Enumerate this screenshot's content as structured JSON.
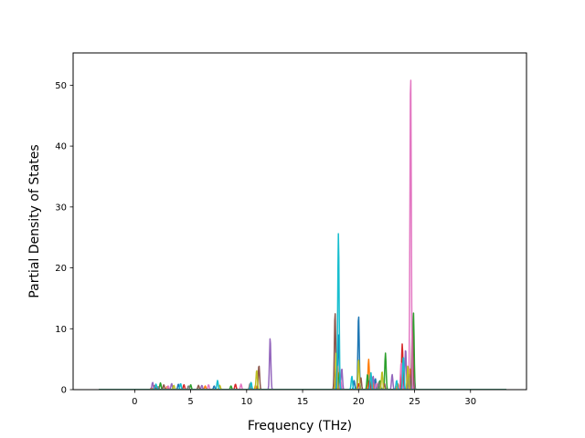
{
  "chart_data": {
    "type": "line",
    "title": "",
    "xlabel": "Frequency (THz)",
    "ylabel": "Partial Density of States",
    "xlim": [
      -5.5,
      35.0
    ],
    "ylim": [
      0,
      55.3
    ],
    "xticks": [
      0,
      5,
      10,
      15,
      20,
      25,
      30
    ],
    "yticks": [
      0,
      10,
      20,
      30,
      40,
      50
    ],
    "grid": false,
    "legend": "none",
    "x_range_plotted": [
      -3.2,
      33.2
    ],
    "series": [
      {
        "color": "#1f77b4",
        "peaks": [
          [
            2.0,
            0.4
          ],
          [
            3.9,
            0.9
          ],
          [
            7.1,
            0.6
          ],
          [
            18.2,
            9.0
          ],
          [
            19.6,
            1.5
          ],
          [
            20.0,
            12.3
          ],
          [
            21.5,
            1.8
          ],
          [
            24.0,
            3.0
          ],
          [
            24.5,
            1.2
          ]
        ]
      },
      {
        "color": "#ff7f0e",
        "peaks": [
          [
            1.5,
            0.3
          ],
          [
            2.9,
            0.5
          ],
          [
            6.3,
            0.6
          ],
          [
            10.8,
            0.7
          ],
          [
            18.1,
            4.0
          ],
          [
            20.9,
            5.0
          ],
          [
            21.2,
            2.0
          ],
          [
            23.5,
            1.0
          ],
          [
            24.6,
            3.5
          ]
        ]
      },
      {
        "color": "#2ca02c",
        "peaks": [
          [
            2.3,
            1.1
          ],
          [
            5.0,
            0.8
          ],
          [
            8.6,
            0.6
          ],
          [
            18.3,
            3.0
          ],
          [
            20.8,
            2.5
          ],
          [
            21.9,
            1.5
          ],
          [
            22.4,
            6.0
          ],
          [
            24.9,
            12.7
          ]
        ]
      },
      {
        "color": "#d62728",
        "peaks": [
          [
            1.8,
            0.7
          ],
          [
            4.4,
            0.8
          ],
          [
            9.0,
            0.9
          ],
          [
            18.0,
            2.0
          ],
          [
            20.0,
            1.0
          ],
          [
            21.0,
            1.5
          ],
          [
            23.9,
            7.5
          ],
          [
            24.4,
            2.5
          ]
        ]
      },
      {
        "color": "#9467bd",
        "peaks": [
          [
            1.6,
            1.2
          ],
          [
            3.3,
            1.0
          ],
          [
            6.0,
            0.7
          ],
          [
            12.1,
            8.5
          ],
          [
            18.5,
            3.5
          ],
          [
            21.3,
            2.2
          ],
          [
            23.0,
            2.5
          ],
          [
            24.2,
            6.7
          ],
          [
            24.9,
            2.0
          ]
        ]
      },
      {
        "color": "#8c564b",
        "peaks": [
          [
            2.6,
            0.8
          ],
          [
            5.7,
            0.7
          ],
          [
            11.1,
            4.0
          ],
          [
            17.9,
            12.7
          ],
          [
            20.2,
            2.0
          ],
          [
            22.3,
            1.0
          ],
          [
            24.8,
            10.0
          ]
        ]
      },
      {
        "color": "#e377c2",
        "peaks": [
          [
            3.0,
            0.6
          ],
          [
            6.6,
            0.8
          ],
          [
            9.5,
            0.9
          ],
          [
            18.4,
            1.5
          ],
          [
            21.6,
            1.0
          ],
          [
            23.8,
            4.5
          ],
          [
            24.65,
            52.7
          ]
        ]
      },
      {
        "color": "#7f7f7f",
        "peaks": [
          [
            2.1,
            0.5
          ],
          [
            4.8,
            0.6
          ],
          [
            10.3,
            1.0
          ],
          [
            18.1,
            2.0
          ],
          [
            21.8,
            1.2
          ],
          [
            24.5,
            2.5
          ]
        ]
      },
      {
        "color": "#bcbd22",
        "peaks": [
          [
            3.5,
            0.7
          ],
          [
            7.6,
            0.7
          ],
          [
            10.9,
            3.2
          ],
          [
            18.0,
            6.0
          ],
          [
            20.0,
            5.0
          ],
          [
            22.1,
            3.0
          ],
          [
            24.4,
            4.0
          ]
        ]
      },
      {
        "color": "#17becf",
        "peaks": [
          [
            1.9,
            0.9
          ],
          [
            4.1,
            1.0
          ],
          [
            7.4,
            1.5
          ],
          [
            10.4,
            1.2
          ],
          [
            18.2,
            25.7
          ],
          [
            19.4,
            2.2
          ],
          [
            21.1,
            2.8
          ],
          [
            23.4,
            1.5
          ],
          [
            24.0,
            5.5
          ]
        ]
      }
    ]
  }
}
